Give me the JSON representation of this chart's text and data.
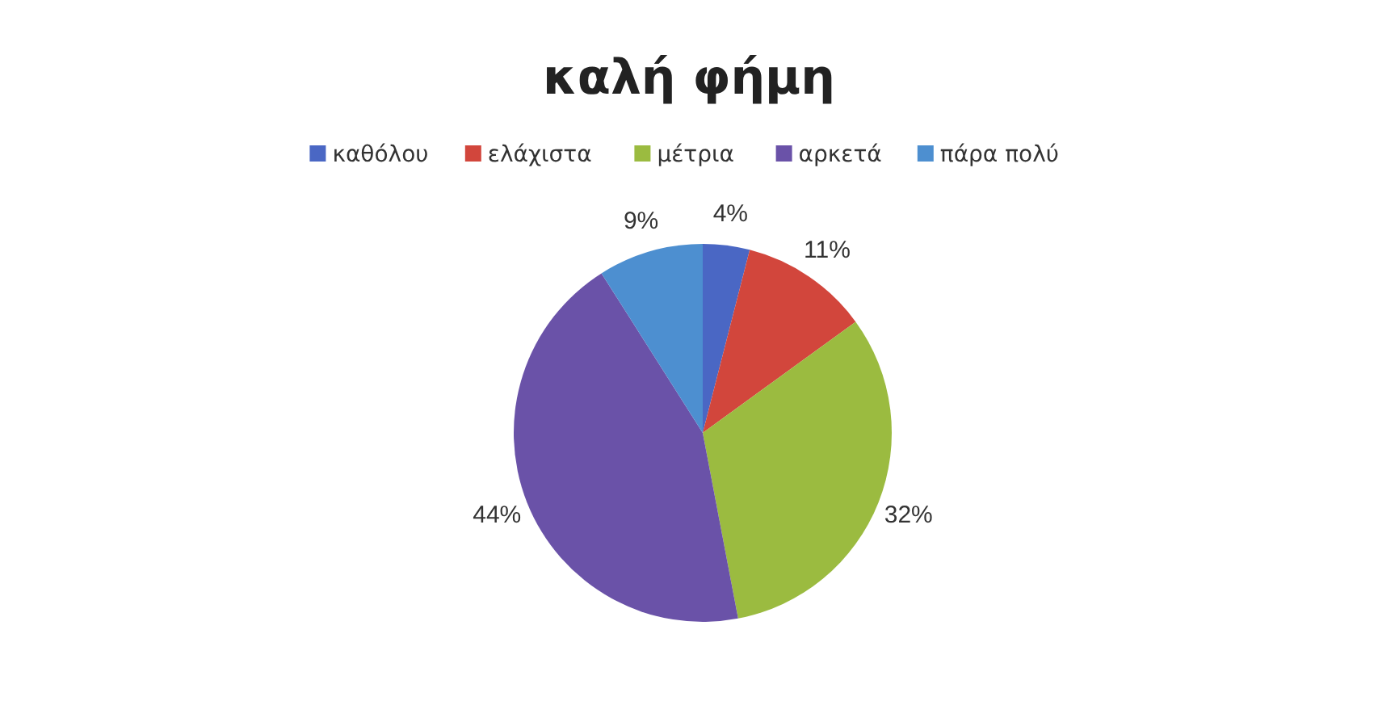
{
  "chart_data": {
    "type": "pie",
    "title": "καλή φήμη",
    "categories": [
      "καθόλου",
      "ελάχιστα",
      "μέτρια",
      "αρκετά",
      "πάρα πολύ"
    ],
    "values": [
      4,
      11,
      32,
      44,
      9
    ],
    "colors": [
      "#4a67c4",
      "#d2463c",
      "#9bbb40",
      "#6a52a8",
      "#4d8fd0"
    ],
    "value_labels": [
      "4%",
      "11%",
      "32%",
      "44%",
      "9%"
    ],
    "legend": "top"
  }
}
